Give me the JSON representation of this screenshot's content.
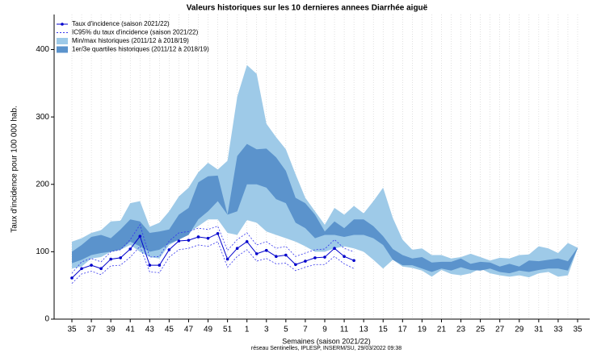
{
  "chart_data": {
    "type": "band-line",
    "title": "Valeurs historiques sur les  10  dernieres annees Diarrhée aiguë",
    "xlabel": "Semaines (saison 2021/22)",
    "ylabel": "Taux d'incidence pour 100 000 hab.",
    "source": "réseau Sentinelles, IPLESP, INSERM/SU, 29/03/2022 09:38",
    "categories": [
      "35",
      null,
      "37",
      null,
      "39",
      null,
      "41",
      null,
      "43",
      null,
      "45",
      null,
      "47",
      null,
      "49",
      null,
      "51",
      null,
      "1",
      null,
      "3",
      null,
      "5",
      null,
      "7",
      null,
      "9",
      null,
      "11",
      null,
      "13",
      null,
      "15",
      null,
      "17",
      null,
      "19",
      null,
      "21",
      null,
      "23",
      null,
      "25",
      null,
      "27",
      null,
      "29",
      null,
      "31",
      null,
      "33",
      null,
      "35"
    ],
    "ylim": [
      0,
      452
    ],
    "yticks": [
      0,
      100,
      200,
      300,
      400
    ],
    "grid": true,
    "series": [
      {
        "name": "Taux d'incidence (saison 2021/22)",
        "color": "#0000cc",
        "values": [
          61,
          75,
          80,
          75,
          89,
          91,
          104,
          123,
          80,
          80,
          103,
          116,
          117,
          122,
          120,
          127,
          89,
          105,
          115,
          97,
          102,
          93,
          95,
          81,
          86,
          91,
          92,
          105,
          93,
          87,
          null,
          null,
          null,
          null,
          null,
          null,
          null,
          null,
          null,
          null,
          null,
          null,
          null,
          null,
          null,
          null,
          null,
          null,
          null,
          null,
          null,
          null,
          null
        ]
      },
      {
        "name": "IC95% du taux d'incidence (saison 2021/22)",
        "color": "#3333ee",
        "lower": [
          53,
          67,
          71,
          66,
          79,
          80,
          92,
          108,
          70,
          69,
          92,
          103,
          105,
          110,
          108,
          115,
          77,
          93,
          103,
          86,
          90,
          82,
          83,
          72,
          77,
          81,
          81,
          93,
          82,
          75,
          null,
          null,
          null,
          null,
          null,
          null,
          null,
          null,
          null,
          null,
          null,
          null,
          null,
          null,
          null,
          null,
          null,
          null,
          null,
          null,
          null,
          null,
          null
        ],
        "upper": [
          68,
          85,
          90,
          85,
          100,
          103,
          118,
          140,
          92,
          93,
          116,
          128,
          130,
          135,
          133,
          138,
          102,
          118,
          128,
          110,
          115,
          105,
          108,
          93,
          98,
          103,
          104,
          118,
          105,
          100,
          null,
          null,
          null,
          null,
          null,
          null,
          null,
          null,
          null,
          null,
          null,
          null,
          null,
          null,
          null,
          null,
          null,
          null,
          null,
          null,
          null,
          null,
          null
        ]
      },
      {
        "name": "Min/max historiques (2011/12 à 2018/19)",
        "color": "#9ecae8",
        "lower": [
          75,
          78,
          90,
          92,
          100,
          103,
          110,
          100,
          92,
          90,
          110,
          118,
          128,
          138,
          148,
          148,
          128,
          125,
          147,
          143,
          130,
          125,
          120,
          115,
          108,
          100,
          100,
          105,
          108,
          105,
          100,
          88,
          75,
          88,
          78,
          76,
          72,
          63,
          73,
          67,
          65,
          68,
          75,
          68,
          65,
          63,
          65,
          62,
          68,
          70,
          63,
          65,
          105
        ],
        "upper": [
          115,
          120,
          128,
          132,
          145,
          146,
          172,
          175,
          137,
          143,
          160,
          182,
          195,
          218,
          232,
          222,
          235,
          330,
          377,
          364,
          290,
          270,
          252,
          215,
          180,
          160,
          140,
          165,
          155,
          168,
          157,
          175,
          195,
          150,
          118,
          103,
          105,
          95,
          95,
          90,
          92,
          97,
          92,
          87,
          91,
          90,
          95,
          96,
          108,
          105,
          98,
          113,
          106
        ]
      },
      {
        "name": "1er/3e quartiles historiques (2011/12 à 2018/19)",
        "color": "#5b93cc",
        "lower": [
          83,
          88,
          95,
          98,
          100,
          103,
          115,
          108,
          100,
          103,
          112,
          118,
          125,
          148,
          160,
          175,
          155,
          160,
          200,
          200,
          195,
          178,
          172,
          143,
          135,
          120,
          125,
          125,
          122,
          125,
          125,
          120,
          110,
          88,
          80,
          80,
          75,
          70,
          75,
          72,
          77,
          73,
          72,
          75,
          70,
          68,
          72,
          70,
          73,
          75,
          75,
          72,
          105
        ],
        "upper": [
          100,
          110,
          122,
          125,
          120,
          133,
          148,
          145,
          128,
          130,
          133,
          155,
          165,
          203,
          212,
          213,
          155,
          242,
          260,
          252,
          253,
          240,
          220,
          180,
          172,
          155,
          130,
          145,
          135,
          148,
          148,
          138,
          123,
          104,
          95,
          90,
          92,
          84,
          85,
          85,
          90,
          82,
          85,
          84,
          78,
          82,
          78,
          87,
          86,
          88,
          90,
          86,
          106
        ]
      }
    ]
  }
}
